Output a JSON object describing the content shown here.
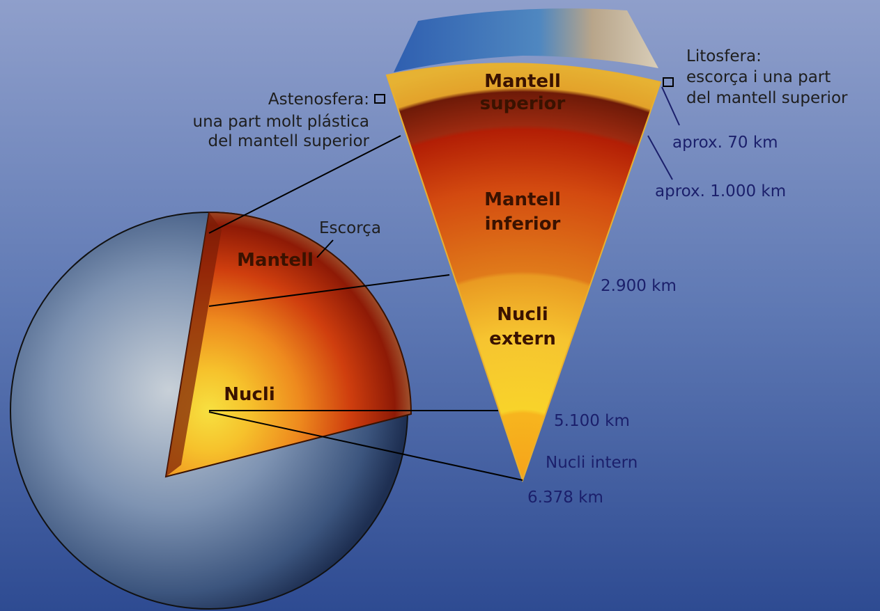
{
  "lithosphere": {
    "title": "Litosfera:",
    "description": [
      "escorça i una part",
      "del mantell superior"
    ]
  },
  "asthenosphere": {
    "title": "Astenosfera:",
    "description": [
      "una part molt plástica",
      "del mantell superior"
    ]
  },
  "wedge_layers": [
    {
      "name": [
        "Mantell",
        "superior"
      ]
    },
    {
      "name": [
        "Mantell",
        "inferior"
      ]
    },
    {
      "name": [
        "Nucli",
        "extern"
      ]
    }
  ],
  "depths": [
    "aprox. 70 km",
    "aprox. 1.000 km",
    "2.900 km",
    "5.100 km",
    "6.378 km"
  ],
  "globe_labels": [
    "Escorça",
    "Mantell",
    "Nucli"
  ],
  "inner_core": "Nucli intern"
}
